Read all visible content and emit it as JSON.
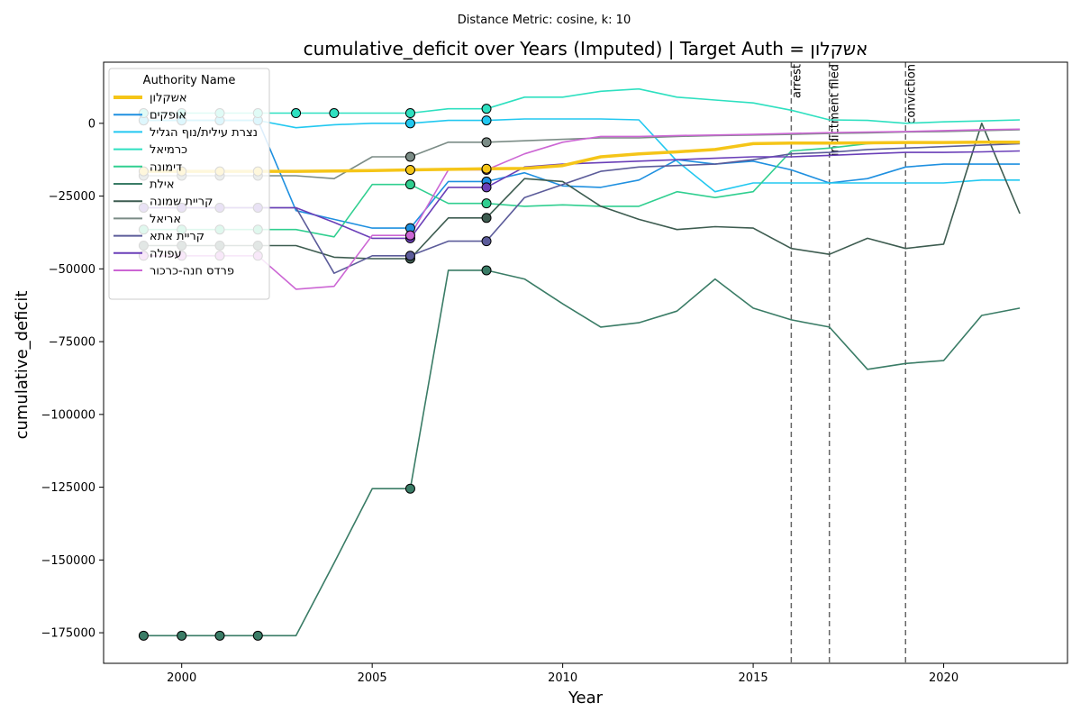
{
  "chart_data": {
    "type": "line",
    "suptitle": "Distance Metric: cosine, k: 10",
    "title": "cumulative_deficit over Years (Imputed) | Target Auth = אשקלון",
    "xlabel": "Year",
    "ylabel": "cumulative_deficit",
    "xlim": [
      1997.95,
      2023.25
    ],
    "ylim": [
      -185500,
      21000
    ],
    "xticks": [
      2000,
      2005,
      2010,
      2015,
      2020
    ],
    "yticks": [
      0,
      -25000,
      -50000,
      -75000,
      -100000,
      -125000,
      -150000,
      -175000
    ],
    "grid": false,
    "legend": {
      "title": "Authority Name",
      "placement": "top-left"
    },
    "events": [
      {
        "x": 2016,
        "label": "arrest"
      },
      {
        "x": 2017,
        "label": "indictment filed"
      },
      {
        "x": 2019,
        "label": "conviction"
      }
    ],
    "x": [
      1999,
      2000,
      2001,
      2002,
      2003,
      2004,
      2005,
      2006,
      2007,
      2008,
      2009,
      2010,
      2011,
      2012,
      2013,
      2014,
      2015,
      2016,
      2017,
      2018,
      2019,
      2020,
      2021,
      2022
    ],
    "series": [
      {
        "name": "אשקלון",
        "color": "#f5c518",
        "target": true,
        "values": [
          -16500,
          -16500,
          -16500,
          -16500,
          -16500,
          -16400,
          -16200,
          -16000,
          -15800,
          -15600,
          -15500,
          -14500,
          -11500,
          -10500,
          -9800,
          -9000,
          -7000,
          -6800,
          -6800,
          -6700,
          -6600,
          -6600,
          -6500,
          -6500
        ],
        "markers": [
          1999,
          2000,
          2001,
          2002,
          2006,
          2008
        ]
      },
      {
        "name": "אופקים",
        "color": "#1f90e0",
        "values": [
          1000,
          1000,
          1000,
          1000,
          -30000,
          -33000,
          -36000,
          -36000,
          -20000,
          -20000,
          -17000,
          -21500,
          -22000,
          -19500,
          -12500,
          -14000,
          -13000,
          -16000,
          -20500,
          -19000,
          -15000,
          -14000,
          -14000,
          -14000
        ],
        "markers": [
          1999,
          2000,
          2001,
          2002,
          2006,
          2008
        ]
      },
      {
        "name": "נצרת עילית/נוף הגליל",
        "color": "#22c8f0",
        "values": [
          1000,
          1000,
          1000,
          1000,
          -1500,
          -500,
          0,
          0,
          1000,
          1000,
          1500,
          1500,
          1500,
          1200,
          -13000,
          -23500,
          -20500,
          -20500,
          -20500,
          -20500,
          -20500,
          -20500,
          -19500,
          -19500
        ],
        "markers": [
          1999,
          2000,
          2001,
          2002,
          2006,
          2008
        ]
      },
      {
        "name": "כרמיאל",
        "color": "#2ee0c0",
        "values": [
          3500,
          3500,
          3500,
          3500,
          3500,
          3500,
          3500,
          3500,
          5000,
          5000,
          9000,
          9000,
          11000,
          11800,
          9000,
          8000,
          7000,
          4500,
          1200,
          1000,
          0,
          500,
          800,
          1200
        ],
        "markers": [
          1999,
          2000,
          2001,
          2002,
          2003,
          2004,
          2006,
          2008
        ]
      },
      {
        "name": "דימונה",
        "color": "#30cf90",
        "values": [
          -36500,
          -36500,
          -36500,
          -36500,
          -36500,
          -39000,
          -21000,
          -21000,
          -27500,
          -27500,
          -28500,
          -28000,
          -28500,
          -28500,
          -23500,
          -25500,
          -23500,
          -9500,
          -8500,
          -7000,
          -6500,
          -6500,
          -6500,
          -6500
        ],
        "markers": [
          1999,
          2000,
          2001,
          2002,
          2006,
          2008
        ]
      },
      {
        "name": "אילת",
        "color": "#3a7c66",
        "values": [
          -176000,
          -176000,
          -176000,
          -176000,
          -176000,
          -151000,
          -125500,
          -125500,
          -50500,
          -50500,
          -53500,
          -62000,
          -70000,
          -68500,
          -64500,
          -53500,
          -63500,
          -67500,
          -70000,
          -84500,
          -82500,
          -81500,
          -66000,
          -63500
        ],
        "markers": [
          1999,
          2000,
          2001,
          2002,
          2006,
          2008
        ]
      },
      {
        "name": "קריית שמונה",
        "color": "#3d5c50",
        "values": [
          -42000,
          -42000,
          -42000,
          -42000,
          -42000,
          -46000,
          -46500,
          -46500,
          -32500,
          -32500,
          -19000,
          -20000,
          -28500,
          -33000,
          -36500,
          -35500,
          -36000,
          -43000,
          -45000,
          -39500,
          -43000,
          -41500,
          0,
          -31000
        ],
        "markers": [
          1999,
          2000,
          2001,
          2002,
          2006,
          2008
        ]
      },
      {
        "name": "אריאל",
        "color": "#7b8c86",
        "values": [
          -18000,
          -18000,
          -18000,
          -18000,
          -18000,
          -19000,
          -11500,
          -11500,
          -6500,
          -6500,
          -6000,
          -5500,
          -5000,
          -5000,
          -4500,
          -4200,
          -4000,
          -3800,
          -3500,
          -3300,
          -3000,
          -2800,
          -2500,
          -2200
        ],
        "markers": [
          1999,
          2000,
          2001,
          2002,
          2006,
          2008
        ]
      },
      {
        "name": "קריית אתא",
        "color": "#5c5c9a",
        "values": [
          -29000,
          -29000,
          -29000,
          -29000,
          -29000,
          -51500,
          -45500,
          -45500,
          -40500,
          -40500,
          -25500,
          -21000,
          -16500,
          -15000,
          -14500,
          -14000,
          -12500,
          -10500,
          -10000,
          -9000,
          -8500,
          -8000,
          -7500,
          -7000
        ],
        "markers": [
          1999,
          2000,
          2001,
          2002,
          2006,
          2008
        ]
      },
      {
        "name": "עפולה",
        "color": "#6a3fb8",
        "values": [
          -29000,
          -29000,
          -29000,
          -29000,
          -29000,
          -34000,
          -39500,
          -39500,
          -22000,
          -22000,
          -15000,
          -14000,
          -13500,
          -13000,
          -12500,
          -12000,
          -11500,
          -11500,
          -11000,
          -10500,
          -10000,
          -10000,
          -9800,
          -9500
        ],
        "markers": [
          1999,
          2000,
          2001,
          2002,
          2006,
          2008
        ]
      },
      {
        "name": "פרדס חנה-כרכור",
        "color": "#cc66d4",
        "values": [
          -45500,
          -45500,
          -45500,
          -45500,
          -57000,
          -56000,
          -38500,
          -38500,
          -16000,
          -16000,
          -10500,
          -6500,
          -4500,
          -4500,
          -4200,
          -4000,
          -3800,
          -3500,
          -3200,
          -3000,
          -2800,
          -2500,
          -2200,
          -2000
        ],
        "markers": [
          1999,
          2000,
          2001,
          2002,
          2006,
          2008
        ]
      }
    ]
  }
}
